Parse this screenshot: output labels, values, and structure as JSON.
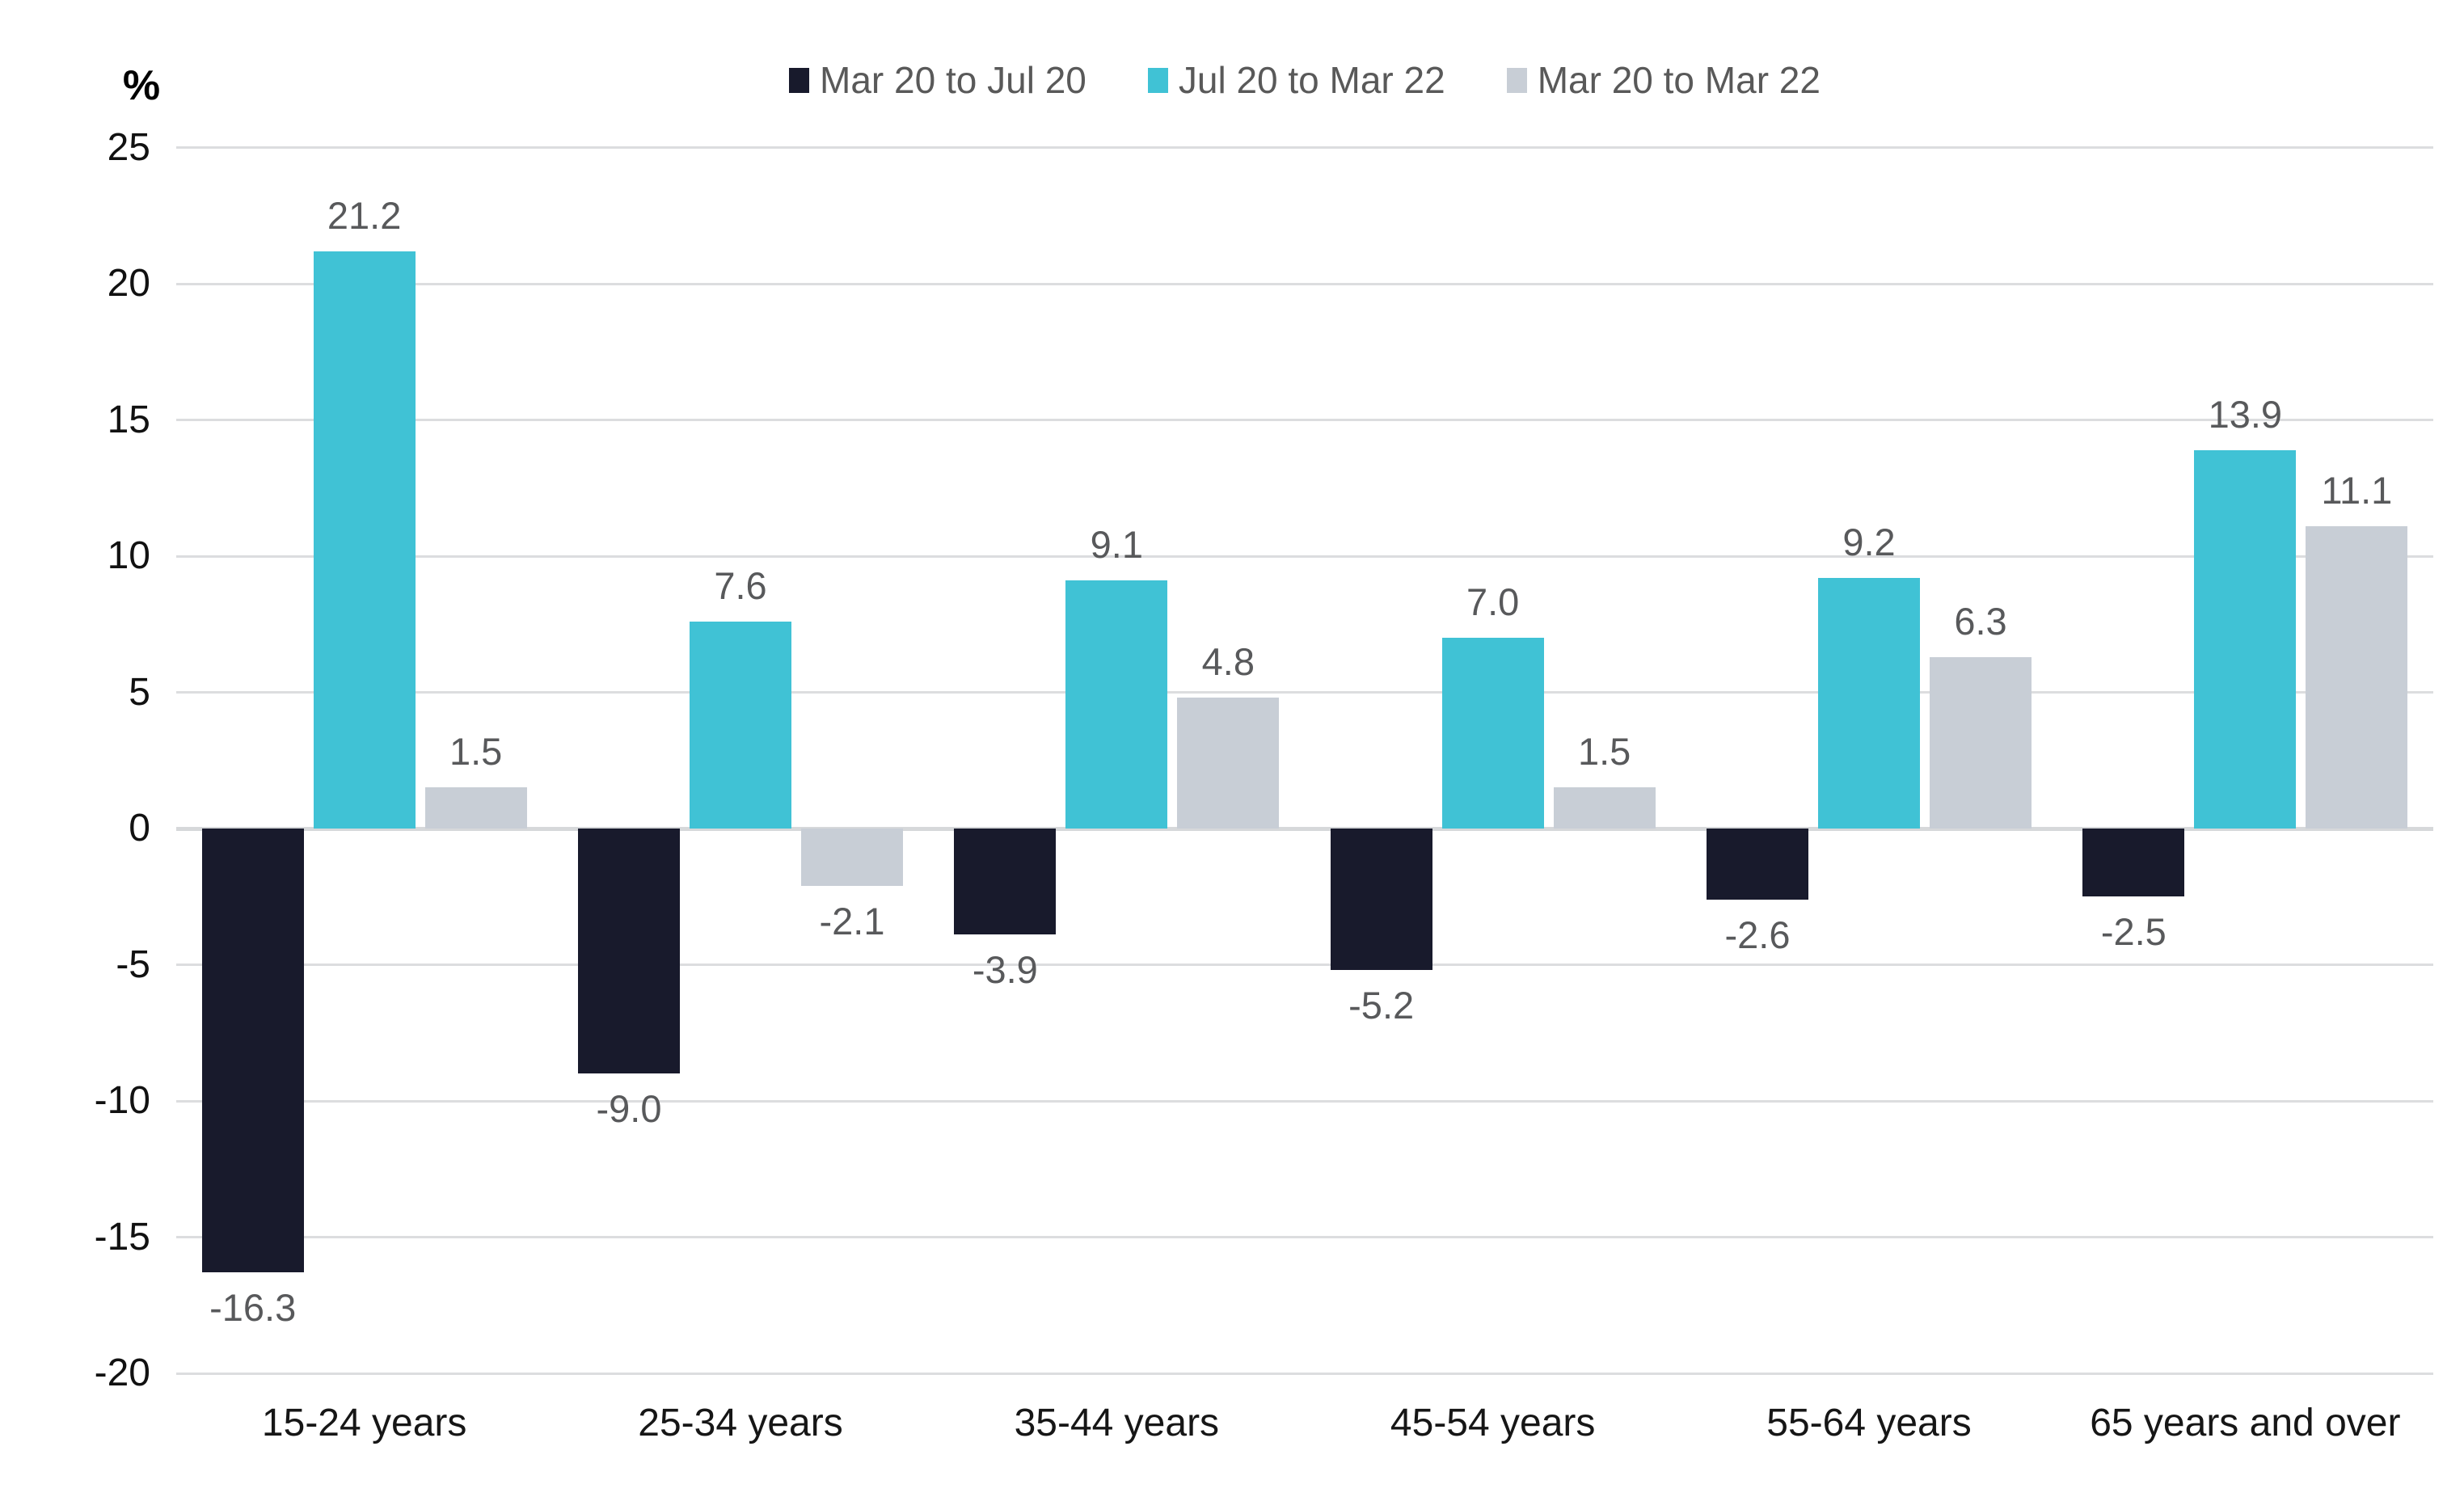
{
  "chart_data": {
    "type": "bar",
    "title": "",
    "ylabel": "%",
    "xlabel": "",
    "ylim": [
      -20,
      25
    ],
    "yticks": [
      25,
      20,
      15,
      10,
      5,
      0,
      -5,
      -10,
      -15,
      -20
    ],
    "grid": true,
    "legend_position": "top-center",
    "categories": [
      "15-24 years",
      "25-34 years",
      "35-44 years",
      "45-54 years",
      "55-64 years",
      "65 years and over"
    ],
    "series": [
      {
        "name": "Mar 20 to Jul 20",
        "color": "#181a2c",
        "values": [
          -16.3,
          -9.0,
          -3.9,
          -5.2,
          -2.6,
          -2.5
        ]
      },
      {
        "name": "Jul 20 to Mar 22",
        "color": "#40c2d5",
        "values": [
          21.2,
          7.6,
          9.1,
          7.0,
          9.2,
          13.9
        ]
      },
      {
        "name": "Mar 20 to Mar 22",
        "color": "#c8ced6",
        "values": [
          1.5,
          -2.1,
          4.8,
          1.5,
          6.3,
          11.1
        ]
      }
    ],
    "value_label_decimals": 1
  },
  "colors": {
    "background": "#ffffff",
    "gridline": "#dcdddf",
    "zero_line": "#d6d8da",
    "y_tick_text": "#111111",
    "x_label_text": "#161616",
    "value_label_text": "#58595b",
    "legend_text": "#595959"
  }
}
